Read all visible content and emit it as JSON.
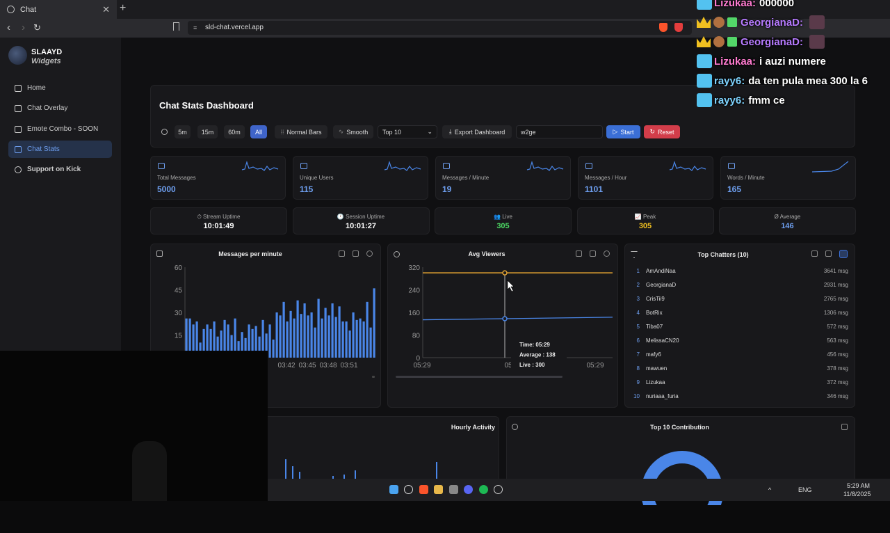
{
  "browser": {
    "tab_title": "Chat",
    "url": "sld-chat.vercel.app",
    "new_tab": "+",
    "close": "✕"
  },
  "sidebar": {
    "brand_line1": "SLAAYD",
    "brand_line2": "Widgets",
    "items": [
      {
        "label": "Home",
        "icon": "home-icon"
      },
      {
        "label": "Chat Overlay",
        "icon": "chat-icon"
      },
      {
        "label": "Emote Combo - SOON",
        "icon": "image-icon"
      },
      {
        "label": "Chat Stats",
        "icon": "stats-icon",
        "active": true
      },
      {
        "label": "Support on Kick",
        "icon": "heart-icon"
      }
    ]
  },
  "dashboard": {
    "title": "Chat Stats Dashboard",
    "time_buttons": [
      "5m",
      "15m",
      "60m",
      "All"
    ],
    "normal_bars": "Normal Bars",
    "smooth": "Smooth",
    "top_select": "Top 10",
    "export": "Export Dashboard",
    "filter_value": "w2ge",
    "start": "Start",
    "reset": "Reset"
  },
  "stats": [
    {
      "label": "Total Messages",
      "value": "5000",
      "icon": "message-icon"
    },
    {
      "label": "Unique Users",
      "value": "115",
      "icon": "users-icon"
    },
    {
      "label": "Messages / Minute",
      "value": "19",
      "icon": "activity-icon"
    },
    {
      "label": "Messages / Hour",
      "value": "1101",
      "icon": "clock-icon"
    },
    {
      "label": "Words / Minute",
      "value": "165",
      "icon": "flame-icon"
    }
  ],
  "uptime": [
    {
      "label": "⏱ Stream Uptime",
      "value": "10:01:49",
      "color": "#ffffff"
    },
    {
      "label": "🕐 Session Uptime",
      "value": "10:01:27",
      "color": "#ffffff"
    },
    {
      "label": "👥 Live",
      "value": "305",
      "color": "#4cd964"
    },
    {
      "label": "📈 Peak",
      "value": "305",
      "color": "#f0c020"
    },
    {
      "label": "Ø Average",
      "value": "146",
      "color": "#6e9ff0"
    }
  ],
  "messages_chart": {
    "title": "Messages per minute",
    "y_ticks": [
      "60",
      "45",
      "30",
      "15"
    ],
    "x_ticks": [
      "03:42",
      "03:45",
      "03:48",
      "03:51"
    ],
    "y_max": 60,
    "values": [
      26,
      26,
      22,
      24,
      10,
      19,
      22,
      19,
      24,
      14,
      18,
      25,
      22,
      15,
      26,
      11,
      17,
      13,
      22,
      19,
      21,
      14,
      25,
      16,
      22,
      12,
      30,
      28,
      37,
      24,
      31,
      26,
      38,
      29,
      36,
      28,
      30,
      20,
      39,
      26,
      33,
      28,
      36,
      27,
      34,
      24,
      24,
      18,
      30,
      25,
      26,
      24,
      37,
      20,
      46
    ]
  },
  "viewers_chart": {
    "title": "Avg Viewers",
    "y_ticks": [
      "320",
      "240",
      "160",
      "80",
      "0"
    ],
    "x_ticks": [
      "05:29",
      "05:29",
      "05:29"
    ],
    "y_max": 320,
    "live": 300,
    "average": 138,
    "tooltip_time": "Time: 05:29",
    "tooltip_average": "Average : 138",
    "tooltip_live": "Live : 300",
    "live_color": "#e6a532",
    "average_color": "#4a86e8"
  },
  "top_chatters": {
    "title": "Top Chatters (10)",
    "list": [
      {
        "rank": "1",
        "name": "AmAndiNaa",
        "msgs": "3641 msg"
      },
      {
        "rank": "2",
        "name": "GeorgianaD",
        "msgs": "2931 msg"
      },
      {
        "rank": "3",
        "name": "CrisTii9",
        "msgs": "2765 msg"
      },
      {
        "rank": "4",
        "name": "BotRix",
        "msgs": "1306 msg"
      },
      {
        "rank": "5",
        "name": "Tiba07",
        "msgs": "572 msg"
      },
      {
        "rank": "6",
        "name": "MelissaCN20",
        "msgs": "563 msg"
      },
      {
        "rank": "7",
        "name": "mafy6",
        "msgs": "456 msg"
      },
      {
        "rank": "8",
        "name": "mawuen",
        "msgs": "378 msg"
      },
      {
        "rank": "9",
        "name": "Lizukaa",
        "msgs": "372 msg"
      },
      {
        "rank": "10",
        "name": "nuriaaa_furia",
        "msgs": "346 msg"
      }
    ]
  },
  "hourly": {
    "title": "Hourly Activity"
  },
  "contribution": {
    "title": "Top 10 Contribution"
  },
  "overlay_chat": [
    {
      "user": "Lizukaa:",
      "text": "000000",
      "user_color": "#ff7bd0",
      "badge": "7tv"
    },
    {
      "user": "GeorgianaD:",
      "text": "",
      "user_color": "#b77bff",
      "badge": "crown"
    },
    {
      "user": "GeorgianaD:",
      "text": "",
      "user_color": "#b77bff",
      "badge": "crown"
    },
    {
      "user": "Lizukaa:",
      "text": "i auzi numere",
      "user_color": "#ff7bd0",
      "badge": "7tv"
    },
    {
      "user": "rayy6:",
      "text": "da ten pula mea 300 la 6",
      "user_color": "#7fd4ff",
      "badge": "7tv"
    },
    {
      "user": "rayy6:",
      "text": "fmm ce",
      "user_color": "#7fd4ff",
      "badge": "7tv"
    }
  ],
  "taskbar": {
    "lang": "ENG",
    "time": "5:29 AM",
    "date": "11/8/2025"
  }
}
